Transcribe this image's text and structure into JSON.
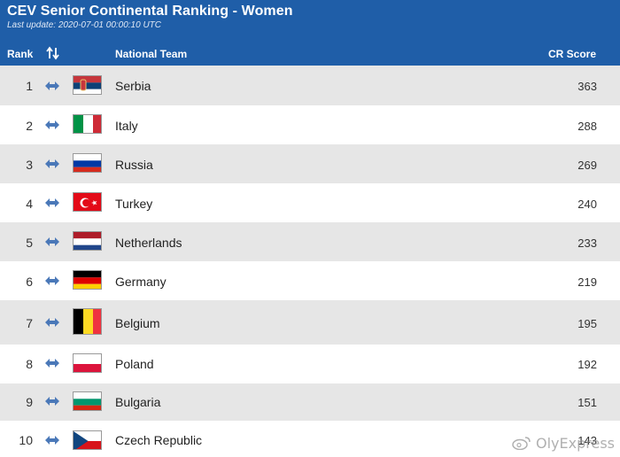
{
  "header": {
    "title": "CEV Senior Continental Ranking - Women",
    "subtitle": "Last update: 2020-07-01 00:00:10 UTC",
    "col_rank": "Rank",
    "col_team": "National Team",
    "col_score": "CR Score"
  },
  "colors": {
    "header_bg": "#1f5ea8",
    "row_shaded": "#e6e6e6",
    "arrow": "#4a78b8"
  },
  "icons": {
    "sort": "sort-arrows-icon",
    "movement": "left-right-arrow-icon"
  },
  "rows": [
    {
      "rank": "1",
      "team": "Serbia",
      "score": "363",
      "flag": "serbia-flag"
    },
    {
      "rank": "2",
      "team": "Italy",
      "score": "288",
      "flag": "italy-flag"
    },
    {
      "rank": "3",
      "team": "Russia",
      "score": "269",
      "flag": "russia-flag"
    },
    {
      "rank": "4",
      "team": "Turkey",
      "score": "240",
      "flag": "turkey-flag"
    },
    {
      "rank": "5",
      "team": "Netherlands",
      "score": "233",
      "flag": "netherlands-flag"
    },
    {
      "rank": "6",
      "team": "Germany",
      "score": "219",
      "flag": "germany-flag"
    },
    {
      "rank": "7",
      "team": "Belgium",
      "score": "195",
      "flag": "belgium-flag"
    },
    {
      "rank": "8",
      "team": "Poland",
      "score": "192",
      "flag": "poland-flag"
    },
    {
      "rank": "9",
      "team": "Bulgaria",
      "score": "151",
      "flag": "bulgaria-flag"
    },
    {
      "rank": "10",
      "team": "Czech Republic",
      "score": "143",
      "flag": "czech-flag"
    }
  ],
  "watermark": {
    "text": "OlyExpress"
  }
}
